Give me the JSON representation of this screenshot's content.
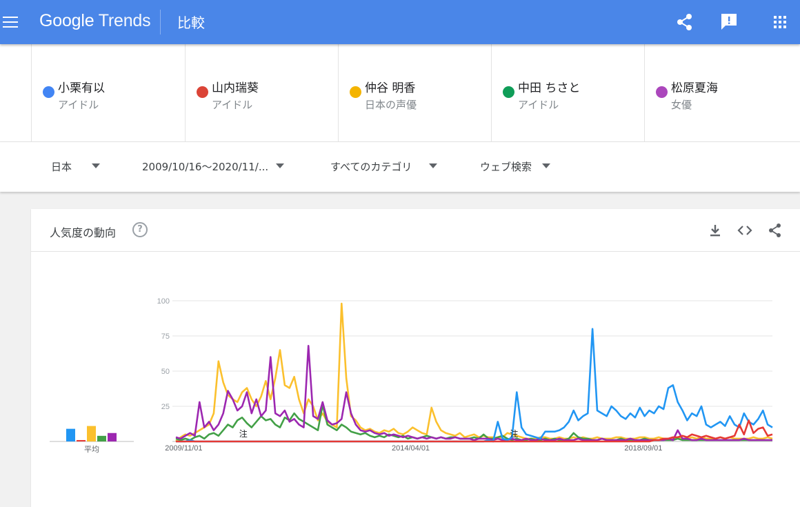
{
  "header": {
    "brand_google": "Google",
    "brand_trends": "Trends",
    "page_title": "比較"
  },
  "terms": [
    {
      "name": "小栗有以",
      "sub": "アイドル",
      "color": "#4285f4"
    },
    {
      "name": "山内瑞葵",
      "sub": "アイドル",
      "color": "#db4437"
    },
    {
      "name": "仲谷 明香",
      "sub": "日本の声優",
      "color": "#f4b400"
    },
    {
      "name": "中田 ちさと",
      "sub": "アイドル",
      "color": "#0f9d58"
    },
    {
      "name": "松原夏海",
      "sub": "女優",
      "color": "#ab47bc"
    }
  ],
  "filters": {
    "region": "日本",
    "date_range": "2009/10/16〜2020/11/...",
    "category": "すべてのカテゴリ",
    "search_type": "ウェブ検索"
  },
  "card": {
    "title": "人気度の動向",
    "help": "?"
  },
  "chart_data": {
    "type": "line",
    "x_ticks": [
      "2009/11/01",
      "2014/04/01",
      "2018/09/01"
    ],
    "y_ticks": [
      100,
      75,
      50,
      25
    ],
    "ylim": [
      0,
      100
    ],
    "note_marker": "注",
    "average_label": "平均",
    "averages": [
      {
        "value": 9,
        "color": "#2196f3"
      },
      {
        "value": 1,
        "color": "#e53935"
      },
      {
        "value": 11,
        "color": "#fbc02d"
      },
      {
        "value": 4,
        "color": "#43a047"
      },
      {
        "value": 6,
        "color": "#9c27b0"
      }
    ],
    "series": [
      {
        "color": "#fbc02d",
        "values": [
          0,
          3,
          5,
          4,
          6,
          8,
          10,
          12,
          20,
          57,
          42,
          33,
          30,
          28,
          35,
          38,
          30,
          25,
          32,
          43,
          30,
          45,
          65,
          40,
          38,
          46,
          30,
          20,
          30,
          25,
          15,
          20,
          14,
          12,
          10,
          98,
          45,
          18,
          15,
          10,
          8,
          9,
          7,
          6,
          8,
          7,
          9,
          6,
          5,
          7,
          10,
          8,
          6,
          5,
          24,
          14,
          8,
          6,
          5,
          4,
          6,
          3,
          4,
          5,
          3,
          4,
          3,
          3,
          2,
          3,
          6,
          5,
          4,
          3,
          2,
          2,
          2,
          3,
          3,
          2,
          2,
          3,
          2,
          2,
          3,
          2,
          3,
          2,
          2,
          3,
          2,
          2,
          2,
          3,
          3,
          2,
          2,
          2,
          3,
          3,
          2,
          2,
          3,
          2,
          2,
          2,
          3,
          2,
          2,
          3,
          2,
          3,
          2,
          2,
          2,
          3,
          2,
          3,
          2,
          2,
          2,
          2,
          3,
          2,
          2,
          3,
          2
        ]
      },
      {
        "color": "#43a047",
        "values": [
          2,
          1,
          2,
          1,
          3,
          4,
          2,
          5,
          6,
          4,
          8,
          12,
          10,
          15,
          17,
          13,
          10,
          14,
          18,
          15,
          16,
          12,
          10,
          17,
          15,
          20,
          16,
          14,
          12,
          10,
          8,
          26,
          12,
          10,
          8,
          12,
          10,
          7,
          6,
          5,
          6,
          4,
          3,
          4,
          3,
          5,
          4,
          3,
          4,
          2,
          3,
          2,
          3,
          4,
          3,
          2,
          3,
          2,
          3,
          3,
          2,
          2,
          2,
          3,
          2,
          5,
          2,
          2,
          3,
          4,
          2,
          1,
          2,
          1,
          1,
          2,
          1,
          1,
          2,
          1,
          2,
          1,
          1,
          2,
          6,
          3,
          2,
          2,
          1,
          1,
          2,
          1,
          1,
          1,
          2,
          1,
          1,
          1,
          1,
          2,
          1,
          1,
          1,
          1,
          1,
          1,
          2,
          1,
          1,
          1,
          1,
          1,
          1,
          1,
          1,
          1,
          1,
          1,
          1,
          1,
          1,
          1,
          1,
          1,
          1,
          1,
          1
        ]
      },
      {
        "color": "#9c27b0",
        "values": [
          3,
          2,
          4,
          6,
          4,
          28,
          10,
          14,
          8,
          12,
          20,
          36,
          30,
          22,
          25,
          35,
          20,
          30,
          18,
          22,
          60,
          20,
          18,
          22,
          14,
          16,
          12,
          10,
          68,
          18,
          16,
          28,
          15,
          12,
          13,
          16,
          35,
          20,
          12,
          8,
          7,
          8,
          6,
          5,
          6,
          4,
          5,
          4,
          3,
          4,
          3,
          2,
          3,
          2,
          3,
          2,
          3,
          2,
          2,
          3,
          2,
          2,
          2,
          1,
          2,
          2,
          2,
          1,
          2,
          1,
          1,
          2,
          1,
          1,
          2,
          1,
          1,
          2,
          1,
          1,
          1,
          2,
          1,
          1,
          1,
          2,
          1,
          1,
          1,
          1,
          2,
          1,
          1,
          1,
          1,
          1,
          2,
          1,
          1,
          1,
          1,
          1,
          1,
          1,
          2,
          1,
          8,
          2,
          2,
          1,
          1,
          2,
          1,
          1,
          1,
          1,
          1,
          1,
          1,
          1,
          2,
          1,
          1,
          1,
          1,
          1,
          1
        ]
      },
      {
        "color": "#2196f3",
        "values": [
          0,
          0,
          0,
          1,
          0,
          0,
          0,
          0,
          0,
          0,
          0,
          0,
          0,
          0,
          0,
          0,
          0,
          0,
          0,
          0,
          0,
          0,
          0,
          0,
          0,
          0,
          0,
          0,
          0,
          0,
          0,
          0,
          0,
          0,
          0,
          0,
          0,
          0,
          0,
          0,
          0,
          0,
          0,
          0,
          0,
          0,
          0,
          0,
          0,
          0,
          0,
          0,
          0,
          0,
          0,
          0,
          0,
          0,
          0,
          0,
          0,
          0,
          0,
          0,
          0,
          0,
          1,
          0,
          14,
          2,
          1,
          3,
          35,
          10,
          5,
          4,
          3,
          2,
          7,
          7,
          7,
          8,
          10,
          14,
          22,
          15,
          18,
          20,
          80,
          22,
          20,
          18,
          25,
          22,
          18,
          16,
          20,
          17,
          24,
          18,
          22,
          20,
          25,
          23,
          38,
          40,
          28,
          22,
          15,
          20,
          18,
          25,
          12,
          10,
          12,
          14,
          11,
          18,
          12,
          10,
          20,
          14,
          12,
          16,
          22,
          12,
          10
        ]
      },
      {
        "color": "#e53935",
        "values": [
          0,
          0,
          0,
          0,
          0,
          0,
          0,
          0,
          0,
          0,
          0,
          0,
          0,
          0,
          0,
          0,
          0,
          0,
          0,
          0,
          0,
          0,
          0,
          0,
          0,
          0,
          0,
          0,
          0,
          0,
          0,
          0,
          0,
          0,
          0,
          0,
          0,
          0,
          0,
          0,
          0,
          0,
          0,
          0,
          0,
          0,
          0,
          0,
          0,
          0,
          0,
          0,
          0,
          0,
          0,
          0,
          0,
          0,
          0,
          0,
          0,
          0,
          0,
          0,
          0,
          0,
          0,
          0,
          0,
          0,
          0,
          0,
          0,
          0,
          0,
          0,
          0,
          0,
          0,
          0,
          0,
          0,
          0,
          0,
          0,
          0,
          0,
          0,
          0,
          0,
          0,
          0,
          0,
          0,
          0,
          0,
          0,
          0,
          0,
          0,
          0,
          1,
          1,
          2,
          2,
          3,
          3,
          4,
          3,
          5,
          4,
          3,
          4,
          3,
          2,
          3,
          2,
          3,
          4,
          12,
          5,
          15,
          6,
          9,
          10,
          4,
          5
        ]
      }
    ]
  }
}
